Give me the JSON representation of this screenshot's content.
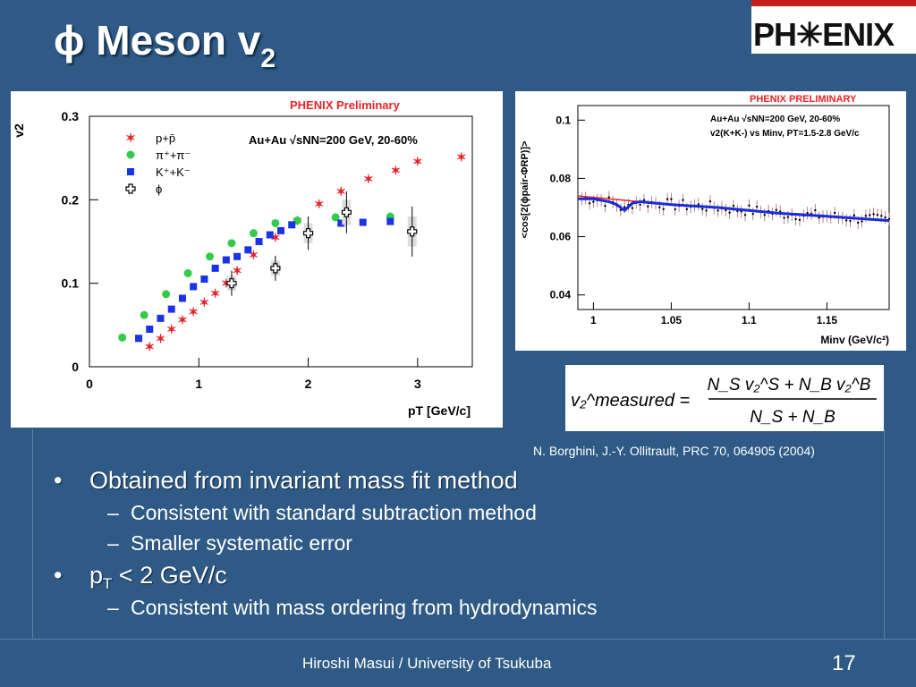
{
  "slide": {
    "title_main": "ϕ Meson v",
    "title_sub": "2",
    "logo_text": "PH✳ENIX",
    "citation": "N. Borghini, J.-Y. Ollitrault, PRC 70, 064905 (2004)",
    "footer": "Hiroshi Masui / University of Tsukuba",
    "page_number": "17"
  },
  "bullets": {
    "b1": {
      "marker": "•",
      "text": "Obtained from invariant mass fit method"
    },
    "b1a": {
      "marker": "–",
      "text": "Consistent with standard subtraction method"
    },
    "b1b": {
      "marker": "–",
      "text": "Smaller systematic error"
    },
    "b2": {
      "marker": "•",
      "text_main": "p",
      "text_sub": "T",
      "text_rest": " < 2 GeV/c"
    },
    "b2a": {
      "marker": "–",
      "text": "Consistent with mass ordering from hydrodynamics"
    }
  },
  "formula": {
    "lhs": "v₂^measured =",
    "numerator": "N_S v₂^S + N_B v₂^B",
    "denominator": "N_S + N_B"
  },
  "colors": {
    "background": "#2f5a86",
    "proton": "#e8242a",
    "pion": "#33cc4a",
    "kaon": "#1a33e6",
    "phi": "#000000",
    "fit_line": "#1a2cd8",
    "fit_red": "#e8242a",
    "preliminary": "#e8242a"
  },
  "chart_data": [
    {
      "type": "scatter",
      "preliminary": "PHENIX Preliminary",
      "annotation": "Au+Au √sNN=200 GeV, 20-60%",
      "xlabel": "pT [GeV/c]",
      "ylabel": "v2",
      "xlim": [
        0,
        3.5
      ],
      "ylim": [
        0,
        0.3
      ],
      "xticks": [
        "0",
        "1",
        "2",
        "3"
      ],
      "yticks": [
        "0",
        "0.1",
        "0.2",
        "0.3"
      ],
      "series": [
        {
          "name": "p+p̄",
          "marker": "star",
          "x": [
            0.55,
            0.65,
            0.75,
            0.85,
            0.95,
            1.05,
            1.15,
            1.25,
            1.35,
            1.5,
            1.7,
            1.9,
            2.1,
            2.3,
            2.55,
            2.8,
            3.0,
            3.4
          ],
          "y": [
            0.024,
            0.034,
            0.045,
            0.056,
            0.066,
            0.077,
            0.088,
            0.1,
            0.115,
            0.134,
            0.155,
            0.175,
            0.195,
            0.21,
            0.225,
            0.235,
            0.246,
            0.251
          ]
        },
        {
          "name": "π⁺+π⁻",
          "marker": "circle",
          "x": [
            0.3,
            0.5,
            0.7,
            0.9,
            1.1,
            1.3,
            1.5,
            1.7,
            1.9,
            2.25,
            2.75
          ],
          "y": [
            0.035,
            0.062,
            0.087,
            0.112,
            0.132,
            0.148,
            0.16,
            0.172,
            0.175,
            0.179,
            0.18
          ]
        },
        {
          "name": "K⁺+K⁻",
          "marker": "square",
          "x": [
            0.45,
            0.55,
            0.65,
            0.75,
            0.85,
            0.95,
            1.05,
            1.15,
            1.25,
            1.35,
            1.45,
            1.55,
            1.65,
            1.75,
            1.85,
            2.3,
            2.5,
            2.75
          ],
          "y": [
            0.034,
            0.045,
            0.058,
            0.069,
            0.082,
            0.096,
            0.105,
            0.118,
            0.128,
            0.132,
            0.14,
            0.15,
            0.158,
            0.163,
            0.17,
            0.172,
            0.173,
            0.174
          ]
        },
        {
          "name": "ϕ",
          "marker": "cross",
          "x": [
            1.3,
            1.7,
            2.0,
            2.35,
            2.95
          ],
          "y": [
            0.1,
            0.118,
            0.16,
            0.185,
            0.162
          ],
          "err": [
            0.015,
            0.015,
            0.02,
            0.025,
            0.03
          ]
        }
      ]
    },
    {
      "type": "line",
      "preliminary": "PHENIX PRELIMINARY",
      "annotation_1": "Au+Au √sNN=200 GeV, 20-60%",
      "annotation_2": "v2(K+K-) vs Minv, PT=1.5-2.8 GeV/c",
      "xlabel": "Minv (GeV/c²)",
      "ylabel": "<cos[2(ϕpair-ΦRP)]>",
      "xlim": [
        0.99,
        1.19
      ],
      "ylim": [
        0.035,
        0.105
      ],
      "xticks": [
        "1",
        "1.05",
        "1.1",
        "1.15"
      ],
      "yticks": [
        "0.04",
        "0.06",
        "0.08",
        "0.1"
      ],
      "series": [
        {
          "name": "fit",
          "x": [
            0.99,
            1.0,
            1.01,
            1.015,
            1.02,
            1.025,
            1.03,
            1.05,
            1.08,
            1.1,
            1.12,
            1.15,
            1.19
          ],
          "y": [
            0.073,
            0.073,
            0.072,
            0.071,
            0.069,
            0.0715,
            0.072,
            0.071,
            0.07,
            0.069,
            0.068,
            0.067,
            0.0655
          ]
        },
        {
          "name": "background",
          "x": [
            0.99,
            1.05,
            1.1,
            1.15,
            1.19
          ],
          "y": [
            0.074,
            0.071,
            0.069,
            0.067,
            0.0655
          ]
        }
      ],
      "points_rule": "scatter around fit with small vertical error bars"
    }
  ]
}
